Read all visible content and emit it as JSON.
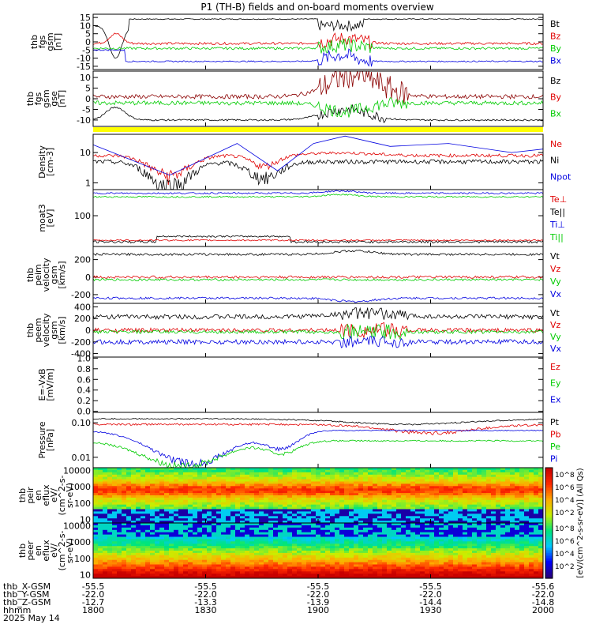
{
  "title": "P1 (TH-B) fields and on-board moments overview",
  "panels": [
    {
      "id": "fgs_gsm",
      "ylabel": [
        "thb",
        "fgs",
        "gsm",
        "[nT]"
      ],
      "yticks": [
        {
          "v": 15,
          "l": "15"
        },
        {
          "v": 10,
          "l": "10"
        },
        {
          "v": 5,
          "l": "5"
        },
        {
          "v": 0,
          "l": "0"
        },
        {
          "v": -5,
          "l": "-5"
        },
        {
          "v": -10,
          "l": "-10"
        },
        {
          "v": -15,
          "l": "-15"
        }
      ],
      "legend": [
        {
          "label": "Bt",
          "color": "#000000"
        },
        {
          "label": "Bz",
          "color": "#e00000"
        },
        {
          "label": "By",
          "color": "#00cc00"
        },
        {
          "label": "Bx",
          "color": "#0000e0"
        }
      ]
    },
    {
      "id": "fgs_gse",
      "ylabel": [
        "thb",
        "fgs",
        "gsm",
        "gse",
        "[nT]"
      ],
      "yticks": [
        {
          "v": 10,
          "l": "10"
        },
        {
          "v": 5,
          "l": "5"
        },
        {
          "v": 0,
          "l": "0"
        },
        {
          "v": -5,
          "l": "-5"
        },
        {
          "v": -10,
          "l": "-10"
        }
      ],
      "legend": [
        {
          "label": "Bz",
          "color": "#000000"
        },
        {
          "label": "By",
          "color": "#e00000"
        },
        {
          "label": "Bx",
          "color": "#00cc00"
        }
      ]
    },
    {
      "id": "density",
      "ylabel": [
        "Density",
        "[cm-3]"
      ],
      "yticks": [
        {
          "v": 10,
          "l": "10"
        },
        {
          "v": 1,
          "l": "1"
        }
      ],
      "legend": [
        {
          "label": "Ne",
          "color": "#e00000"
        },
        {
          "label": "Ni",
          "color": "#000000"
        },
        {
          "label": "Npot",
          "color": "#0000e0"
        }
      ]
    },
    {
      "id": "temp",
      "ylabel": [
        "moat3",
        "[eV]"
      ],
      "yticks": [
        {
          "v": 100,
          "l": "100"
        }
      ],
      "legend": [
        {
          "label": "Te⊥",
          "color": "#e00000"
        },
        {
          "label": "Te||",
          "color": "#000000"
        },
        {
          "label": "Ti⊥",
          "color": "#0000e0"
        },
        {
          "label": "Ti||",
          "color": "#00cc00"
        }
      ]
    },
    {
      "id": "vi",
      "ylabel": [
        "thb",
        "peim",
        "velocity",
        "gsm",
        "[km/s]"
      ],
      "yticks": [
        {
          "v": 200,
          "l": "200"
        },
        {
          "v": 0,
          "l": "0"
        },
        {
          "v": -200,
          "l": "-200"
        }
      ],
      "legend": [
        {
          "label": "Vt",
          "color": "#000000"
        },
        {
          "label": "Vz",
          "color": "#e00000"
        },
        {
          "label": "Vy",
          "color": "#00cc00"
        },
        {
          "label": "Vx",
          "color": "#0000e0"
        }
      ]
    },
    {
      "id": "ve",
      "ylabel": [
        "thb",
        "peem",
        "velocity",
        "gsm",
        "[km/s]"
      ],
      "yticks": [
        {
          "v": 400,
          "l": "400"
        },
        {
          "v": 200,
          "l": "200"
        },
        {
          "v": 0,
          "l": "0"
        },
        {
          "v": -200,
          "l": "-200"
        },
        {
          "v": -400,
          "l": "-400"
        }
      ],
      "legend": [
        {
          "label": "Vt",
          "color": "#000000"
        },
        {
          "label": "Vz",
          "color": "#e00000"
        },
        {
          "label": "Vy",
          "color": "#00cc00"
        },
        {
          "label": "Vx",
          "color": "#0000e0"
        }
      ]
    },
    {
      "id": "efield",
      "ylabel": [
        "E=-VxB",
        "[mV/m]"
      ],
      "yticks": [
        {
          "v": 1.0,
          "l": "1.0"
        },
        {
          "v": 0.8,
          "l": "0.8"
        },
        {
          "v": 0.6,
          "l": "0.6"
        },
        {
          "v": 0.4,
          "l": "0.4"
        },
        {
          "v": 0.2,
          "l": "0.2"
        },
        {
          "v": 0.0,
          "l": "0.0"
        }
      ],
      "legend": [
        {
          "label": "Ez",
          "color": "#e00000"
        },
        {
          "label": "Ey",
          "color": "#00cc00"
        },
        {
          "label": "Ex",
          "color": "#0000e0"
        }
      ]
    },
    {
      "id": "pressure",
      "ylabel": [
        "Pressure",
        "[nPa]"
      ],
      "yticks": [
        {
          "v": 0.1,
          "l": "0.10"
        },
        {
          "v": 0.01,
          "l": "0.01"
        }
      ],
      "legend": [
        {
          "label": "Pt",
          "color": "#000000"
        },
        {
          "label": "Pb",
          "color": "#e00000"
        },
        {
          "label": "Pe",
          "color": "#00cc00"
        },
        {
          "label": "Pi",
          "color": "#0000e0"
        }
      ]
    },
    {
      "id": "peir",
      "ylabel": [
        "thb",
        "peir",
        "en",
        "eflux",
        "eV/",
        "(cm^2-s-",
        "sr-eV)"
      ],
      "yticks": [
        {
          "v": 10000,
          "l": "10000"
        },
        {
          "v": 1000,
          "l": "1000"
        },
        {
          "v": 100,
          "l": "100"
        },
        {
          "v": 10,
          "l": "10"
        }
      ],
      "legend": []
    },
    {
      "id": "peer",
      "ylabel": [
        "thb",
        "peer",
        "en",
        "eflux",
        "eV/",
        "(cm^2-s-",
        "sr-eV)"
      ],
      "yticks": [
        {
          "v": 10000,
          "l": "10000"
        },
        {
          "v": 1000,
          "l": "1000"
        },
        {
          "v": 100,
          "l": "100"
        },
        {
          "v": 10,
          "l": "10"
        }
      ],
      "legend": []
    }
  ],
  "colorbar": {
    "label": "[eV/(cm^2-s-sr-eV)] (All Qs)",
    "ticks": [
      "10^8",
      "10^6",
      "10^4",
      "10^2"
    ],
    "ticks_lower": [
      "10^8",
      "10^6",
      "10^4",
      "10^2"
    ]
  },
  "xaxis": {
    "ticks": [
      "1800",
      "1830",
      "1900",
      "1930",
      "2000"
    ],
    "rows": [
      {
        "label": "thb_X-GSM",
        "values": [
          "-55.5",
          "-55.5",
          "-55.5",
          "-55.5",
          "-55.6"
        ]
      },
      {
        "label": "thb_Y-GSM",
        "values": [
          "-22.0",
          "-22.0",
          "-22.0",
          "-22.0",
          "-22.0"
        ]
      },
      {
        "label": "thb_Z-GSM",
        "values": [
          "-12.7",
          "-13.3",
          "-13.9",
          "-14.4",
          "-14.8"
        ]
      },
      {
        "label": "hhmm",
        "values": [
          "1800",
          "1830",
          "1900",
          "1930",
          "2000"
        ]
      }
    ],
    "date": "2025 May 14"
  },
  "chart_data": {
    "type": "line",
    "x_range_hhmm": [
      "1800",
      "2000"
    ],
    "series_summary": [
      {
        "panel": "fgs_gsm",
        "name": "Bt",
        "approx_level": 14
      },
      {
        "panel": "fgs_gsm",
        "name": "Bx",
        "approx_level": -12
      },
      {
        "panel": "density",
        "name": "Npot",
        "approx_range": [
          1.5,
          30
        ]
      },
      {
        "panel": "vi",
        "name": "Vt",
        "approx_level": 280
      },
      {
        "panel": "vi",
        "name": "Vx",
        "approx_level": -250
      }
    ]
  }
}
